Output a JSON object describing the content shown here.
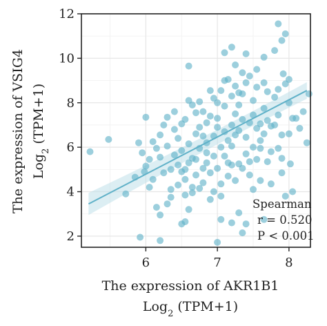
{
  "chart_data": {
    "type": "scatter",
    "xlabel_line1": "The expression of AKR1B1",
    "xlabel_line2_base": "Log",
    "xlabel_line2_sub": "2",
    "xlabel_line2_rest": " (TPM+1)",
    "ylabel_line1": "The expression of VSIG4",
    "ylabel_line2_base": "Log",
    "ylabel_line2_sub": "2",
    "ylabel_line2_rest": " (TPM+1)",
    "xlim": [
      5.1,
      8.3
    ],
    "ylim": [
      1.5,
      12
    ],
    "x_ticks": [
      6,
      7,
      8
    ],
    "y_ticks": [
      2,
      4,
      6,
      8,
      10,
      12
    ],
    "grid": true,
    "point_color": "#5fb1c8",
    "line_color": "#5fb1c8",
    "band_color": "#bfe0ea",
    "regression": {
      "x0": 5.2,
      "y0": 3.45,
      "x1": 8.25,
      "y1": 8.55
    },
    "annotation": [
      "Spearman",
      "r = 0.520",
      "P < 0.001"
    ],
    "points": [
      [
        5.22,
        5.8
      ],
      [
        5.48,
        6.35
      ],
      [
        5.92,
        1.95
      ],
      [
        5.72,
        3.9
      ],
      [
        5.85,
        4.65
      ],
      [
        5.9,
        6.2
      ],
      [
        6.2,
        1.8
      ],
      [
        6.6,
        9.65
      ],
      [
        6.5,
        2.55
      ],
      [
        6.55,
        2.65
      ],
      [
        7.0,
        1.72
      ],
      [
        7.05,
        2.75
      ],
      [
        7.2,
        2.6
      ],
      [
        7.35,
        2.15
      ],
      [
        7.4,
        2.55
      ],
      [
        7.1,
        10.25
      ],
      [
        7.2,
        10.5
      ],
      [
        7.25,
        9.7
      ],
      [
        7.4,
        10.2
      ],
      [
        7.65,
        10.05
      ],
      [
        7.8,
        10.35
      ],
      [
        7.85,
        11.55
      ],
      [
        7.9,
        10.8
      ],
      [
        7.95,
        11.1
      ],
      [
        7.92,
        9.3
      ],
      [
        8.0,
        9.05
      ],
      [
        8.1,
        7.3
      ],
      [
        8.25,
        6.2
      ],
      [
        8.2,
        7.6
      ],
      [
        8.28,
        8.4
      ],
      [
        7.9,
        4.85
      ],
      [
        7.95,
        3.8
      ],
      [
        8.05,
        4.0
      ],
      [
        7.65,
        2.75
      ],
      [
        7.3,
        3.05
      ],
      [
        7.85,
        5.95
      ],
      [
        7.9,
        5.5
      ],
      [
        8.0,
        6.6
      ],
      [
        7.75,
        4.35
      ],
      [
        8.02,
        5.25
      ],
      [
        8.15,
        6.85
      ],
      [
        7.6,
        4.5
      ],
      [
        6.0,
        7.35
      ],
      [
        6.0,
        5.15
      ],
      [
        6.1,
        4.55
      ],
      [
        6.15,
        3.3
      ],
      [
        6.2,
        2.95
      ],
      [
        6.3,
        3.45
      ],
      [
        6.35,
        4.1
      ],
      [
        6.25,
        7.0
      ],
      [
        6.1,
        6.25
      ],
      [
        6.4,
        7.6
      ],
      [
        6.45,
        5.2
      ],
      [
        6.5,
        4.9
      ],
      [
        6.55,
        3.85
      ],
      [
        6.6,
        3.2
      ],
      [
        6.65,
        4.2
      ],
      [
        6.7,
        6.6
      ],
      [
        6.75,
        8.05
      ],
      [
        6.8,
        5.05
      ],
      [
        6.85,
        7.1
      ],
      [
        6.9,
        3.65
      ],
      [
        6.95,
        5.6
      ],
      [
        7.0,
        6.9
      ],
      [
        7.05,
        4.35
      ],
      [
        7.1,
        7.85
      ],
      [
        7.15,
        6.3
      ],
      [
        7.2,
        5.2
      ],
      [
        7.25,
        7.5
      ],
      [
        7.3,
        6.75
      ],
      [
        7.35,
        8.4
      ],
      [
        7.4,
        5.7
      ],
      [
        7.45,
        7.1
      ],
      [
        7.5,
        4.1
      ],
      [
        7.55,
        8.7
      ],
      [
        7.6,
        6.3
      ],
      [
        7.65,
        7.75
      ],
      [
        7.7,
        5.35
      ],
      [
        7.75,
        6.95
      ],
      [
        7.8,
        8.25
      ],
      [
        7.85,
        7.45
      ],
      [
        7.9,
        6.55
      ],
      [
        8.0,
        8.0
      ],
      [
        8.05,
        7.3
      ],
      [
        6.3,
        6.05
      ],
      [
        6.45,
        6.4
      ],
      [
        6.6,
        6.15
      ],
      [
        6.7,
        5.45
      ],
      [
        6.8,
        6.5
      ],
      [
        6.9,
        7.4
      ],
      [
        7.0,
        7.3
      ],
      [
        7.1,
        6.7
      ],
      [
        7.2,
        8.3
      ],
      [
        7.3,
        7.9
      ],
      [
        7.4,
        8.9
      ],
      [
        7.5,
        7.45
      ],
      [
        6.55,
        7.25
      ],
      [
        6.65,
        7.9
      ],
      [
        6.75,
        6.9
      ],
      [
        6.85,
        6.2
      ],
      [
        6.95,
        8.2
      ],
      [
        7.05,
        8.55
      ],
      [
        7.15,
        9.05
      ],
      [
        7.25,
        8.75
      ],
      [
        7.35,
        9.35
      ],
      [
        7.45,
        9.2
      ],
      [
        7.55,
        9.5
      ],
      [
        7.65,
        8.9
      ],
      [
        6.4,
        5.65
      ],
      [
        6.5,
        5.85
      ],
      [
        6.6,
        5.3
      ],
      [
        6.7,
        4.75
      ],
      [
        6.8,
        4.4
      ],
      [
        6.9,
        4.85
      ],
      [
        7.0,
        5.05
      ],
      [
        7.1,
        5.6
      ],
      [
        7.2,
        6.05
      ],
      [
        7.3,
        5.25
      ],
      [
        7.4,
        6.45
      ],
      [
        7.5,
        6.0
      ],
      [
        6.2,
        5.55
      ],
      [
        6.25,
        4.85
      ],
      [
        6.35,
        5.0
      ],
      [
        6.15,
        5.95
      ],
      [
        6.05,
        5.45
      ],
      [
        5.95,
        5.75
      ],
      [
        6.55,
        4.55
      ],
      [
        6.65,
        3.95
      ],
      [
        6.75,
        4.15
      ],
      [
        6.85,
        5.3
      ],
      [
        6.95,
        4.0
      ],
      [
        7.05,
        3.8
      ],
      [
        7.15,
        4.7
      ],
      [
        7.25,
        4.5
      ],
      [
        7.35,
        5.05
      ],
      [
        7.45,
        4.75
      ],
      [
        7.55,
        5.45
      ],
      [
        7.6,
        5.95
      ],
      [
        6.8,
        7.6
      ],
      [
        6.9,
        8.55
      ],
      [
        7.0,
        8.0
      ],
      [
        7.1,
        9.0
      ],
      [
        7.2,
        7.0
      ],
      [
        7.3,
        8.45
      ],
      [
        6.6,
        8.1
      ],
      [
        6.7,
        7.55
      ],
      [
        6.5,
        7.05
      ],
      [
        6.4,
        6.8
      ],
      [
        6.3,
        7.35
      ],
      [
        6.2,
        6.55
      ],
      [
        7.7,
        7.2
      ],
      [
        7.8,
        7.0
      ],
      [
        7.85,
        8.6
      ],
      [
        7.95,
        8.85
      ],
      [
        7.7,
        8.5
      ],
      [
        7.6,
        7.05
      ],
      [
        6.95,
        6.5
      ],
      [
        7.05,
        6.0
      ],
      [
        7.15,
        5.3
      ],
      [
        6.85,
        5.75
      ],
      [
        6.75,
        5.95
      ],
      [
        7.25,
        6.55
      ],
      [
        6.45,
        4.3
      ],
      [
        6.35,
        3.75
      ],
      [
        6.55,
        5.0
      ],
      [
        6.65,
        5.5
      ],
      [
        6.05,
        4.2
      ],
      [
        5.98,
        4.9
      ],
      [
        7.55,
        6.85
      ],
      [
        7.45,
        5.35
      ],
      [
        7.65,
        6.6
      ],
      [
        7.75,
        5.8
      ],
      [
        7.35,
        7.25
      ],
      [
        7.5,
        8.1
      ]
    ]
  }
}
